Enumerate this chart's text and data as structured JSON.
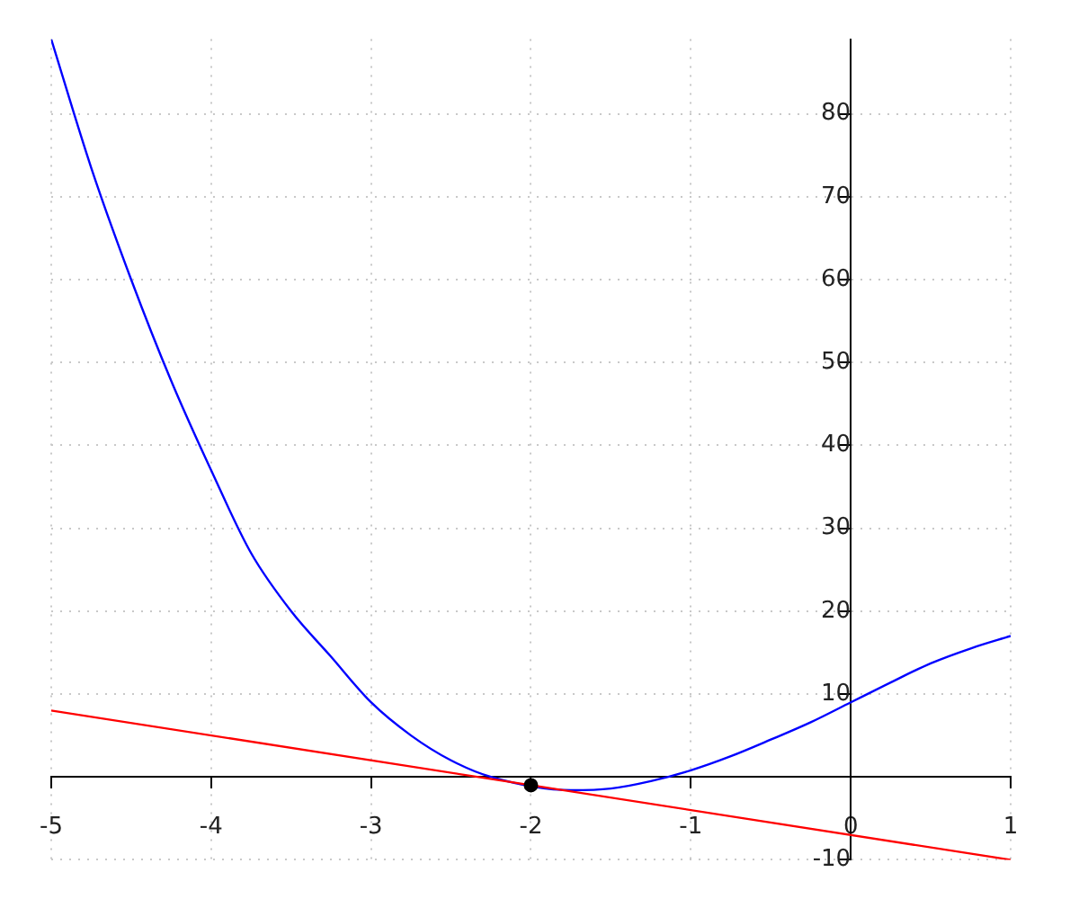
{
  "chart_data": {
    "type": "line",
    "xlim": [
      -5,
      1
    ],
    "ylim": [
      -10,
      89
    ],
    "xticks": [
      -5,
      -4,
      -3,
      -2,
      -1,
      0,
      1
    ],
    "yticks": [
      -10,
      {
        "value": 0,
        "label": null
      },
      10,
      20,
      30,
      40,
      50,
      60,
      70,
      80
    ],
    "grid": true,
    "legend": false,
    "marker": "none",
    "series": [
      {
        "color": "#0000ff",
        "x": [
          -5,
          -4.75,
          -4.5,
          -4.25,
          -4,
          -3.75,
          -3.5,
          -3.25,
          -3,
          -2.75,
          -2.5,
          -2.25,
          -1.75,
          -1.5,
          -1.25,
          -1,
          -0.75,
          -0.5,
          -0.25,
          0,
          0.25,
          0.5,
          0.75,
          1
        ],
        "values": [
          89,
          73.5,
          60,
          47.8,
          37,
          27,
          20,
          14.5,
          9,
          5,
          2,
          0,
          -1.6,
          -1.4,
          -0.5,
          0.8,
          2.5,
          4.5,
          6.6,
          9,
          11.4,
          13.7,
          15.5,
          17
        ]
      },
      {
        "color": "#ff0000",
        "x": [
          -5,
          1
        ],
        "values": [
          8,
          -10
        ]
      },
      {
        "type": "scatter",
        "color": "#000000",
        "marker": "circle",
        "x": [
          -2
        ],
        "values": [
          -1
        ]
      }
    ]
  }
}
